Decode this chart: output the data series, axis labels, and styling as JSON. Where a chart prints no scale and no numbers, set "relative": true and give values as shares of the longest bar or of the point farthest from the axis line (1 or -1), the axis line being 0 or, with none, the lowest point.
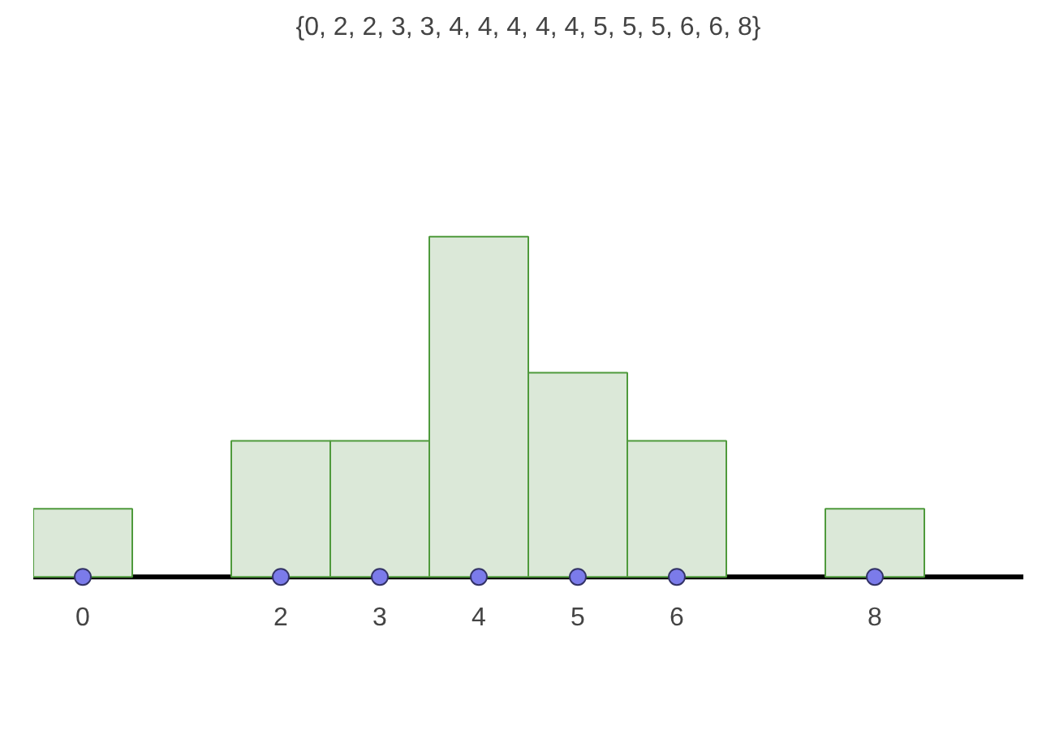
{
  "chart_data": {
    "type": "bar",
    "title": "{0, 2, 2, 3, 3, 4, 4, 4, 4, 4, 5, 5, 5, 6, 6, 8}",
    "relative": true,
    "x": [
      0,
      2,
      3,
      4,
      5,
      6,
      8
    ],
    "xlim": [
      -0.5,
      9.5
    ],
    "xticks": [
      0,
      2,
      3,
      4,
      5,
      6,
      8
    ],
    "grid": false,
    "series": [
      {
        "color": "#dbe8d8",
        "values": [
          0.2,
          0.4,
          0.4,
          1,
          0.6,
          0.4,
          0.2
        ]
      },
      {
        "type": "scatter",
        "color": "#7b7bea",
        "marker": "circle",
        "values": [
          0,
          0,
          0,
          0,
          0,
          0,
          0
        ]
      }
    ]
  }
}
